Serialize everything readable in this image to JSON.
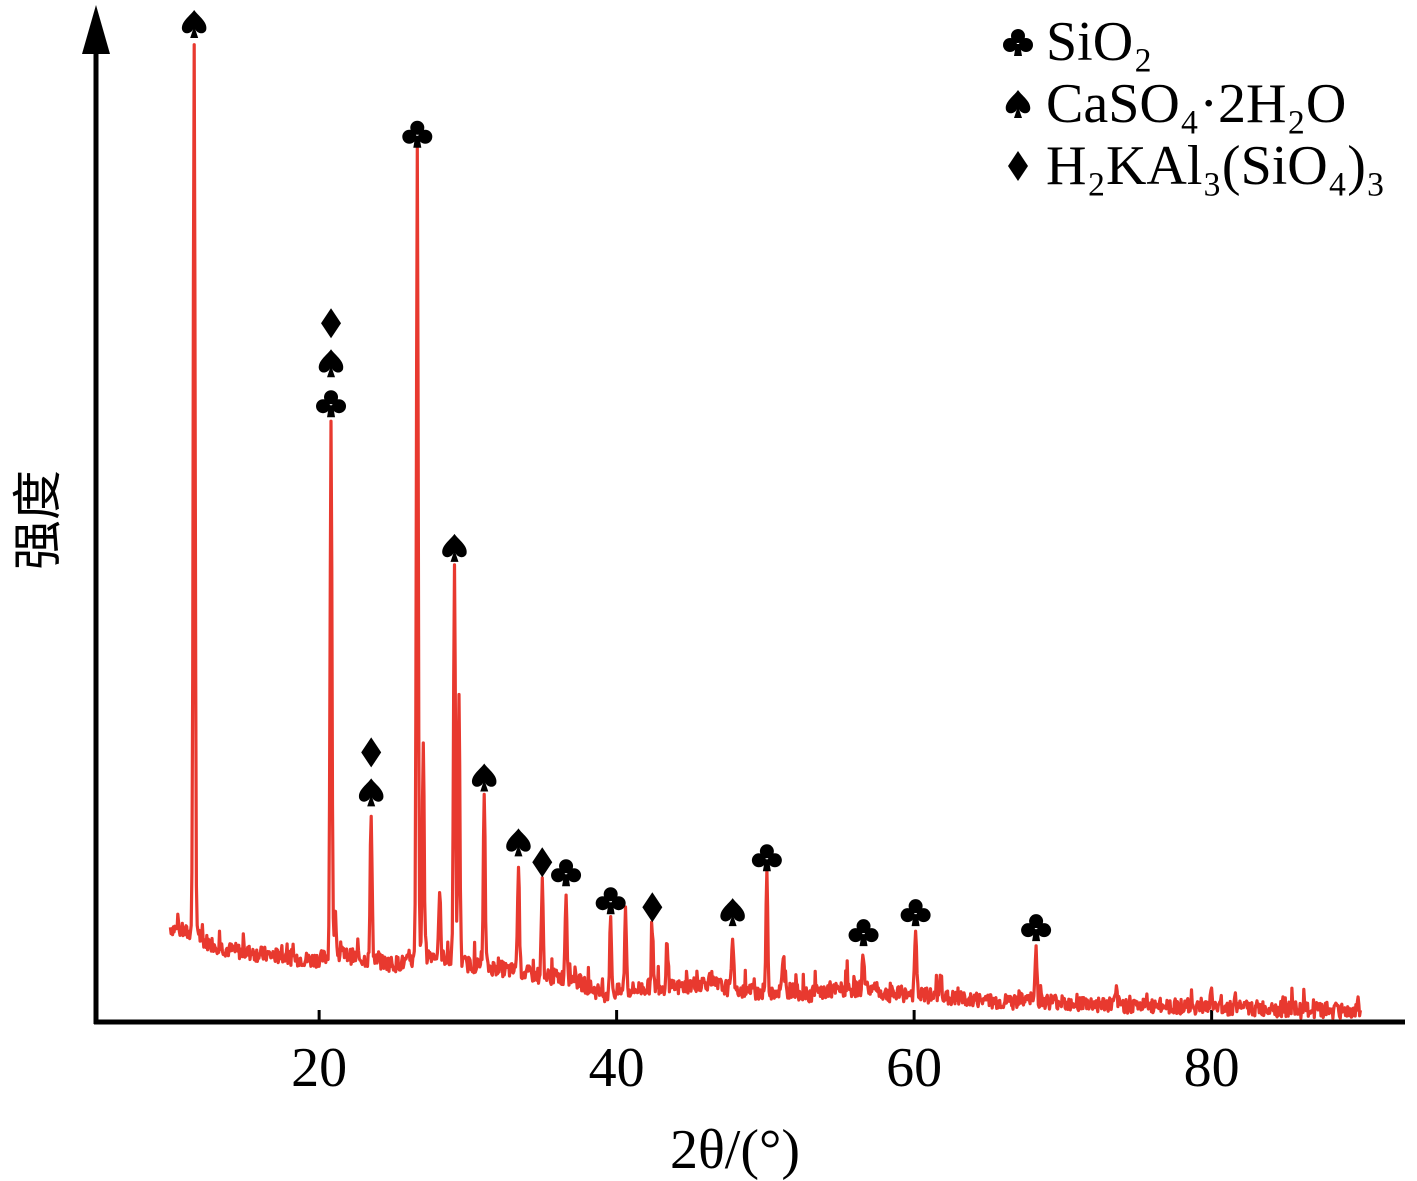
{
  "chart_data": {
    "type": "line",
    "xlabel": "2θ/(°)",
    "ylabel": "强度",
    "xlim": [
      5,
      93
    ],
    "ylim": [
      0,
      100
    ],
    "xticks": [
      20,
      40,
      60,
      80
    ],
    "grid": false,
    "legend_position": "top-right",
    "series": [
      {
        "color": "#e8392f",
        "baseline": [
          [
            10.0,
            9.5
          ],
          [
            11.0,
            9.0
          ],
          [
            12.5,
            8.0
          ],
          [
            14.0,
            7.2
          ],
          [
            16.0,
            6.8
          ],
          [
            18.0,
            6.5
          ],
          [
            19.5,
            6.2
          ],
          [
            21.5,
            6.8
          ],
          [
            23.0,
            6.3
          ],
          [
            25.0,
            5.8
          ],
          [
            26.0,
            6.0
          ],
          [
            27.5,
            6.8
          ],
          [
            28.5,
            6.4
          ],
          [
            30.0,
            5.8
          ],
          [
            32.0,
            5.4
          ],
          [
            33.5,
            5.0
          ],
          [
            35.0,
            4.6
          ],
          [
            37.0,
            4.4
          ],
          [
            38.0,
            3.6
          ],
          [
            39.0,
            2.8
          ],
          [
            41.0,
            3.2
          ],
          [
            42.5,
            3.6
          ],
          [
            44.0,
            3.4
          ],
          [
            46.0,
            4.0
          ],
          [
            48.0,
            3.2
          ],
          [
            50.0,
            3.0
          ],
          [
            51.5,
            3.2
          ],
          [
            53.0,
            2.8
          ],
          [
            55.0,
            3.2
          ],
          [
            57.0,
            3.4
          ],
          [
            58.0,
            2.8
          ],
          [
            60.0,
            2.8
          ],
          [
            62.0,
            2.4
          ],
          [
            64.0,
            2.2
          ],
          [
            66.0,
            2.0
          ],
          [
            68.0,
            2.2
          ],
          [
            70.0,
            2.0
          ],
          [
            72.0,
            1.8
          ],
          [
            74.0,
            1.7
          ],
          [
            76.0,
            1.6
          ],
          [
            78.0,
            1.6
          ],
          [
            80.0,
            1.5
          ],
          [
            82.0,
            1.4
          ],
          [
            84.0,
            1.3
          ],
          [
            86.0,
            1.2
          ],
          [
            88.0,
            1.1
          ],
          [
            90.0,
            1.1
          ]
        ],
        "peaks": [
          [
            11.6,
            98.0
          ],
          [
            20.8,
            60.0
          ],
          [
            21.1,
            10.5
          ],
          [
            23.5,
            21.0
          ],
          [
            26.6,
            87.0
          ],
          [
            27.0,
            28.0
          ],
          [
            28.1,
            13.0
          ],
          [
            29.1,
            45.5
          ],
          [
            29.4,
            33.0
          ],
          [
            31.1,
            22.5
          ],
          [
            33.4,
            16.0
          ],
          [
            35.0,
            14.0
          ],
          [
            36.6,
            13.0
          ],
          [
            39.6,
            10.2
          ],
          [
            40.6,
            11.2
          ],
          [
            42.4,
            9.5
          ],
          [
            43.4,
            8.2
          ],
          [
            47.8,
            9.0
          ],
          [
            50.1,
            14.5
          ],
          [
            51.2,
            6.0
          ],
          [
            56.6,
            7.0
          ],
          [
            60.1,
            9.0
          ],
          [
            61.8,
            5.0
          ],
          [
            68.2,
            7.5
          ],
          [
            73.6,
            3.0
          ],
          [
            80.0,
            3.0
          ],
          [
            81.6,
            2.5
          ],
          [
            84.0,
            2.2
          ]
        ]
      }
    ],
    "legend": [
      {
        "symbol": "club",
        "label": "SiO₂"
      },
      {
        "symbol": "spade",
        "label": "CaSO₄·2H₂O"
      },
      {
        "symbol": "diamond",
        "label": "H₂KAl₃(SiO₄)₃"
      }
    ],
    "annotations": [
      {
        "x": 11.6,
        "y": 98.0,
        "symbols": [
          "spade"
        ]
      },
      {
        "x": 20.8,
        "y": 60.0,
        "symbols": [
          "club",
          "spade",
          "diamond"
        ]
      },
      {
        "x": 23.5,
        "y": 21.0,
        "symbols": [
          "spade",
          "diamond"
        ]
      },
      {
        "x": 26.6,
        "y": 87.0,
        "symbols": [
          "club"
        ]
      },
      {
        "x": 29.1,
        "y": 45.5,
        "symbols": [
          "spade"
        ]
      },
      {
        "x": 31.1,
        "y": 22.5,
        "symbols": [
          "spade"
        ]
      },
      {
        "x": 33.4,
        "y": 16.0,
        "symbols": [
          "spade"
        ]
      },
      {
        "x": 35.0,
        "y": 14.0,
        "symbols": [
          "diamond"
        ]
      },
      {
        "x": 36.6,
        "y": 13.0,
        "symbols": [
          "club"
        ]
      },
      {
        "x": 39.6,
        "y": 10.2,
        "symbols": [
          "club"
        ]
      },
      {
        "x": 42.4,
        "y": 9.5,
        "symbols": [
          "diamond"
        ]
      },
      {
        "x": 47.8,
        "y": 9.0,
        "symbols": [
          "spade"
        ]
      },
      {
        "x": 50.1,
        "y": 14.5,
        "symbols": [
          "club"
        ]
      },
      {
        "x": 56.6,
        "y": 7.0,
        "symbols": [
          "club"
        ]
      },
      {
        "x": 60.1,
        "y": 9.0,
        "symbols": [
          "club"
        ]
      },
      {
        "x": 68.2,
        "y": 7.5,
        "symbols": [
          "club"
        ]
      }
    ]
  }
}
